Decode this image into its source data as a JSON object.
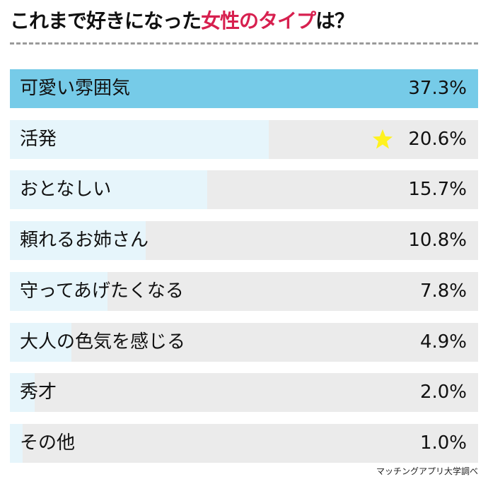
{
  "chart_data": {
    "type": "bar",
    "orientation": "horizontal",
    "title_parts": [
      "これまで好きになった",
      "女性のタイプ",
      "は？"
    ],
    "categories": [
      "可愛い雰囲気",
      "活発",
      "おとなしい",
      "頼れるお姉さん",
      "守ってあげたくなる",
      "大人の色気を感じる",
      "秀才",
      "その他"
    ],
    "values": [
      37.3,
      20.6,
      15.7,
      10.8,
      7.8,
      4.9,
      2.0,
      1.0
    ],
    "value_labels": [
      "37.3%",
      "20.6%",
      "15.7%",
      "10.8%",
      "7.8%",
      "4.9%",
      "2.0%",
      "1.0%"
    ],
    "unit": "%",
    "star_on": "活発",
    "source": "マッチングアプリ大学調べ",
    "colors": {
      "top_bar": "#76cbe8",
      "bar": "#e6f5fb",
      "track": "#ebebeb",
      "highlight_text": "#d7204f",
      "star": "#fff21f"
    }
  }
}
